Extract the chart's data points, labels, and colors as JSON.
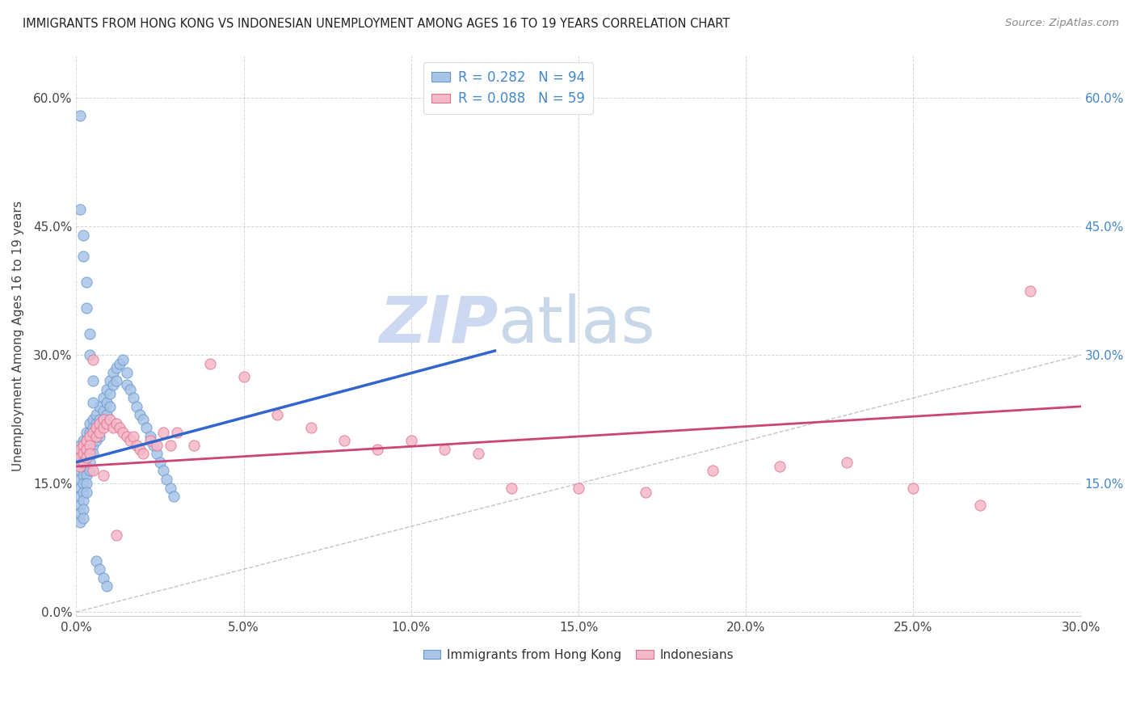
{
  "title": "IMMIGRANTS FROM HONG KONG VS INDONESIAN UNEMPLOYMENT AMONG AGES 16 TO 19 YEARS CORRELATION CHART",
  "source": "Source: ZipAtlas.com",
  "ylabel": "Unemployment Among Ages 16 to 19 years",
  "xlim": [
    0.0,
    0.3
  ],
  "ylim": [
    -0.005,
    0.65
  ],
  "x_ticks": [
    0.0,
    0.05,
    0.1,
    0.15,
    0.2,
    0.25,
    0.3
  ],
  "y_ticks_left": [
    0.0,
    0.15,
    0.3,
    0.45,
    0.6
  ],
  "y_ticks_right": [
    0.15,
    0.3,
    0.45,
    0.6
  ],
  "legend_entry1": "R = 0.282   N = 94",
  "legend_entry2": "R = 0.088   N = 59",
  "legend_label1": "Immigrants from Hong Kong",
  "legend_label2": "Indonesians",
  "watermark_zip": "ZIP",
  "watermark_atlas": "atlas",
  "watermark_color": "#ccd9f0",
  "background_color": "#ffffff",
  "grid_color": "#cccccc",
  "hk_color": "#aac4e8",
  "hk_edge_color": "#6699cc",
  "indo_color": "#f5b8c8",
  "indo_edge_color": "#e07090",
  "hk_trend_color": "#3366cc",
  "indo_trend_color": "#cc4477",
  "diagonal_color": "#aaaaaa",
  "title_color": "#222222",
  "source_color": "#888888",
  "right_tick_color": "#4488cc",
  "left_tick_color": "#444444",
  "hk_trend_x": [
    0.0,
    0.125
  ],
  "hk_trend_y": [
    0.175,
    0.305
  ],
  "indo_trend_x": [
    0.0,
    0.3
  ],
  "indo_trend_y": [
    0.17,
    0.24
  ],
  "hk_x": [
    0.001,
    0.001,
    0.001,
    0.001,
    0.001,
    0.001,
    0.001,
    0.001,
    0.001,
    0.001,
    0.002,
    0.002,
    0.002,
    0.002,
    0.002,
    0.002,
    0.002,
    0.002,
    0.002,
    0.002,
    0.003,
    0.003,
    0.003,
    0.003,
    0.003,
    0.003,
    0.003,
    0.003,
    0.004,
    0.004,
    0.004,
    0.004,
    0.004,
    0.004,
    0.005,
    0.005,
    0.005,
    0.005,
    0.005,
    0.006,
    0.006,
    0.006,
    0.006,
    0.007,
    0.007,
    0.007,
    0.007,
    0.008,
    0.008,
    0.008,
    0.009,
    0.009,
    0.009,
    0.01,
    0.01,
    0.01,
    0.011,
    0.011,
    0.012,
    0.012,
    0.013,
    0.014,
    0.015,
    0.015,
    0.016,
    0.017,
    0.018,
    0.019,
    0.02,
    0.021,
    0.022,
    0.023,
    0.024,
    0.025,
    0.026,
    0.027,
    0.028,
    0.029,
    0.001,
    0.001,
    0.002,
    0.002,
    0.003,
    0.003,
    0.004,
    0.004,
    0.005,
    0.005,
    0.006,
    0.007,
    0.008,
    0.009
  ],
  "hk_y": [
    0.195,
    0.185,
    0.175,
    0.165,
    0.155,
    0.145,
    0.135,
    0.125,
    0.115,
    0.105,
    0.2,
    0.19,
    0.18,
    0.17,
    0.16,
    0.15,
    0.14,
    0.13,
    0.12,
    0.11,
    0.21,
    0.2,
    0.19,
    0.18,
    0.17,
    0.16,
    0.15,
    0.14,
    0.22,
    0.21,
    0.195,
    0.185,
    0.175,
    0.165,
    0.225,
    0.215,
    0.205,
    0.195,
    0.185,
    0.23,
    0.22,
    0.21,
    0.2,
    0.24,
    0.225,
    0.215,
    0.205,
    0.25,
    0.235,
    0.225,
    0.26,
    0.245,
    0.23,
    0.27,
    0.255,
    0.24,
    0.28,
    0.265,
    0.285,
    0.27,
    0.29,
    0.295,
    0.28,
    0.265,
    0.26,
    0.25,
    0.24,
    0.23,
    0.225,
    0.215,
    0.205,
    0.195,
    0.185,
    0.175,
    0.165,
    0.155,
    0.145,
    0.135,
    0.58,
    0.47,
    0.44,
    0.415,
    0.385,
    0.355,
    0.325,
    0.3,
    0.27,
    0.245,
    0.06,
    0.05,
    0.04,
    0.03
  ],
  "indo_x": [
    0.001,
    0.001,
    0.001,
    0.002,
    0.002,
    0.002,
    0.003,
    0.003,
    0.003,
    0.004,
    0.004,
    0.004,
    0.005,
    0.005,
    0.006,
    0.006,
    0.007,
    0.007,
    0.008,
    0.008,
    0.009,
    0.01,
    0.011,
    0.012,
    0.013,
    0.014,
    0.015,
    0.016,
    0.017,
    0.018,
    0.019,
    0.02,
    0.022,
    0.024,
    0.026,
    0.028,
    0.03,
    0.035,
    0.04,
    0.05,
    0.06,
    0.07,
    0.08,
    0.09,
    0.1,
    0.11,
    0.12,
    0.13,
    0.15,
    0.17,
    0.19,
    0.21,
    0.23,
    0.25,
    0.27,
    0.285,
    0.005,
    0.008,
    0.012
  ],
  "indo_y": [
    0.19,
    0.18,
    0.17,
    0.195,
    0.185,
    0.175,
    0.2,
    0.19,
    0.18,
    0.205,
    0.195,
    0.185,
    0.21,
    0.295,
    0.215,
    0.205,
    0.22,
    0.21,
    0.225,
    0.215,
    0.22,
    0.225,
    0.215,
    0.22,
    0.215,
    0.21,
    0.205,
    0.2,
    0.205,
    0.195,
    0.19,
    0.185,
    0.2,
    0.195,
    0.21,
    0.195,
    0.21,
    0.195,
    0.29,
    0.275,
    0.23,
    0.215,
    0.2,
    0.19,
    0.2,
    0.19,
    0.185,
    0.145,
    0.145,
    0.14,
    0.165,
    0.17,
    0.175,
    0.145,
    0.125,
    0.375,
    0.165,
    0.16,
    0.09
  ]
}
